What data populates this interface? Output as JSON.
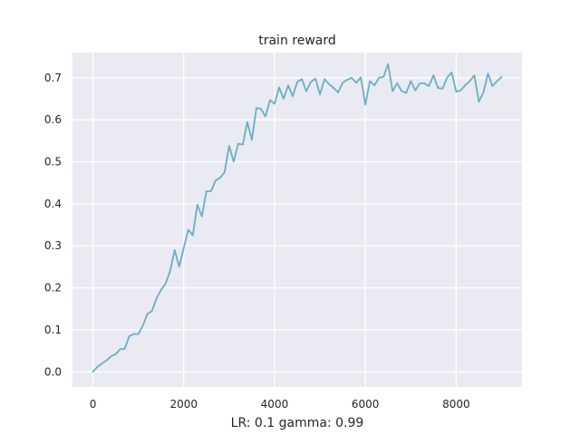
{
  "chart_data": {
    "type": "line",
    "title": "train reward",
    "xlabel": "LR: 0.1 gamma: 0.99",
    "ylabel": "",
    "xlim": [
      -450,
      9450
    ],
    "ylim": [
      -0.036,
      0.76
    ],
    "xticks": [
      0,
      2000,
      4000,
      6000,
      8000
    ],
    "xtick_labels": [
      "0",
      "2000",
      "4000",
      "6000",
      "8000"
    ],
    "yticks": [
      0.0,
      0.1,
      0.2,
      0.3,
      0.4,
      0.5,
      0.6,
      0.7
    ],
    "ytick_labels": [
      "0.0",
      "0.1",
      "0.2",
      "0.3",
      "0.4",
      "0.5",
      "0.6",
      "0.7"
    ],
    "grid": true,
    "background": "#eaeaf2",
    "series": [
      {
        "color": "#6aafc4",
        "x": [
          0,
          100,
          200,
          300,
          400,
          500,
          600,
          700,
          800,
          900,
          1000,
          1100,
          1200,
          1300,
          1400,
          1500,
          1600,
          1700,
          1800,
          1900,
          2000,
          2100,
          2200,
          2300,
          2400,
          2500,
          2600,
          2700,
          2800,
          2900,
          3000,
          3100,
          3200,
          3300,
          3400,
          3500,
          3600,
          3700,
          3800,
          3900,
          4000,
          4100,
          4200,
          4300,
          4400,
          4500,
          4600,
          4700,
          4800,
          4900,
          5000,
          5100,
          5200,
          5300,
          5400,
          5500,
          5600,
          5700,
          5800,
          5900,
          6000,
          6100,
          6200,
          6300,
          6400,
          6500,
          6600,
          6700,
          6800,
          6900,
          7000,
          7100,
          7200,
          7300,
          7400,
          7500,
          7600,
          7700,
          7800,
          7900,
          8000,
          8100,
          8200,
          8300,
          8400,
          8500,
          8600,
          8700,
          8800,
          8900,
          9000
        ],
        "values": [
          0.0,
          0.012,
          0.02,
          0.027,
          0.037,
          0.042,
          0.054,
          0.055,
          0.085,
          0.09,
          0.09,
          0.11,
          0.138,
          0.145,
          0.175,
          0.195,
          0.21,
          0.24,
          0.29,
          0.25,
          0.295,
          0.338,
          0.325,
          0.398,
          0.37,
          0.43,
          0.43,
          0.455,
          0.462,
          0.475,
          0.538,
          0.5,
          0.543,
          0.541,
          0.595,
          0.552,
          0.628,
          0.626,
          0.608,
          0.647,
          0.638,
          0.677,
          0.65,
          0.682,
          0.656,
          0.69,
          0.697,
          0.668,
          0.69,
          0.698,
          0.66,
          0.697,
          0.685,
          0.676,
          0.665,
          0.688,
          0.695,
          0.7,
          0.688,
          0.701,
          0.636,
          0.692,
          0.682,
          0.7,
          0.702,
          0.733,
          0.668,
          0.687,
          0.668,
          0.664,
          0.692,
          0.67,
          0.687,
          0.687,
          0.68,
          0.706,
          0.676,
          0.674,
          0.7,
          0.713,
          0.667,
          0.67,
          0.682,
          0.692,
          0.706,
          0.643,
          0.665,
          0.71,
          0.68,
          0.692,
          0.702
        ]
      }
    ]
  }
}
